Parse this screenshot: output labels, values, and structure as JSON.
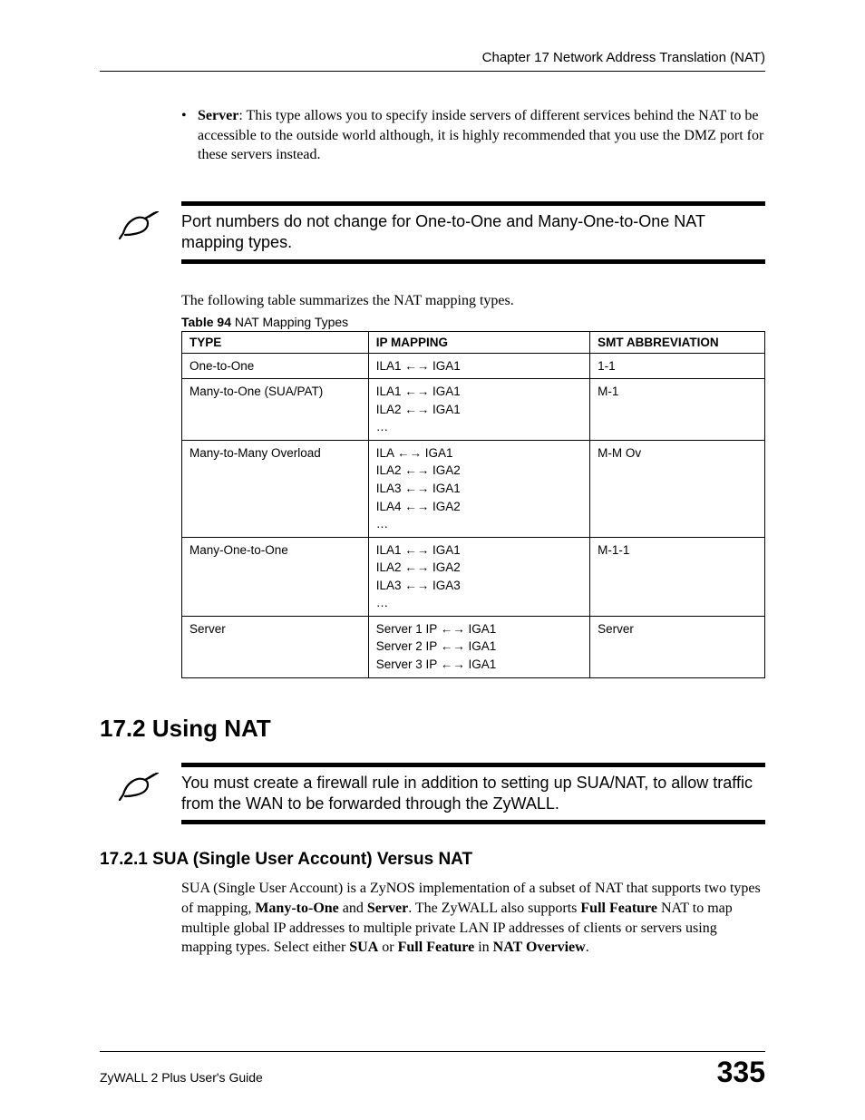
{
  "header": {
    "chapter_line": "Chapter 17 Network Address Translation (NAT)"
  },
  "bullet": {
    "label": "Server",
    "text": ": This type allows you to specify inside servers of different services behind the NAT to be accessible to the outside world although, it is highly recommended that you use the DMZ port for these servers instead."
  },
  "note1": {
    "text": "Port numbers do not change for One-to-One and Many-One-to-One NAT mapping types."
  },
  "table_intro": "The following table summarizes the NAT mapping types.",
  "table_caption_prefix": "Table 94",
  "table_caption_title": "   NAT Mapping Types",
  "table": {
    "columns": [
      "TYPE",
      "IP MAPPING",
      "SMT ABBREVIATION"
    ],
    "rows": [
      {
        "type": "One-to-One",
        "mapping": [
          "ILA1 ←→ IGA1"
        ],
        "abbr": "1-1"
      },
      {
        "type": "Many-to-One (SUA/PAT)",
        "mapping": [
          "ILA1 ←→ IGA1",
          "ILA2 ←→ IGA1",
          "…"
        ],
        "abbr": "M-1"
      },
      {
        "type": "Many-to-Many Overload",
        "mapping": [
          "ILA ←→ IGA1",
          "ILA2 ←→ IGA2",
          "ILA3 ←→ IGA1",
          "ILA4 ←→ IGA2",
          "…"
        ],
        "abbr": "M-M Ov"
      },
      {
        "type": "Many-One-to-One",
        "mapping": [
          "ILA1 ←→ IGA1",
          "ILA2 ←→ IGA2",
          "ILA3 ←→ IGA3",
          "…"
        ],
        "abbr": "M-1-1"
      },
      {
        "type": "Server",
        "mapping": [
          "Server 1 IP ←→ IGA1",
          "Server 2 IP ←→ IGA1",
          "Server 3 IP ←→ IGA1"
        ],
        "abbr": "Server"
      }
    ]
  },
  "section_h2": "17.2  Using NAT",
  "note2": {
    "text": "You must create a firewall rule in addition to setting up SUA/NAT, to allow traffic from the WAN to be forwarded through the ZyWALL."
  },
  "section_h3": "17.2.1  SUA (Single User Account) Versus NAT",
  "para": {
    "p1a": "SUA (Single User Account) is a ZyNOS implementation of a subset of NAT that supports two types of mapping, ",
    "p1b": "Many-to-One",
    "p1c": " and ",
    "p1d": "Server",
    "p1e": ". The ZyWALL also supports ",
    "p1f": "Full Feature",
    "p1g": " NAT to map multiple global IP addresses to multiple private LAN IP addresses of clients or servers using mapping types. Select either ",
    "p1h": "SUA",
    "p1i": " or ",
    "p1j": "Full Feature",
    "p1k": " in ",
    "p1l": "NAT Overview",
    "p1m": "."
  },
  "footer": {
    "guide": "ZyWALL 2 Plus User's Guide",
    "page": "335"
  },
  "colors": {
    "text": "#000000",
    "background": "#ffffff",
    "rule": "#000000"
  },
  "fonts": {
    "serif": "Times New Roman",
    "sans": "Arial"
  }
}
